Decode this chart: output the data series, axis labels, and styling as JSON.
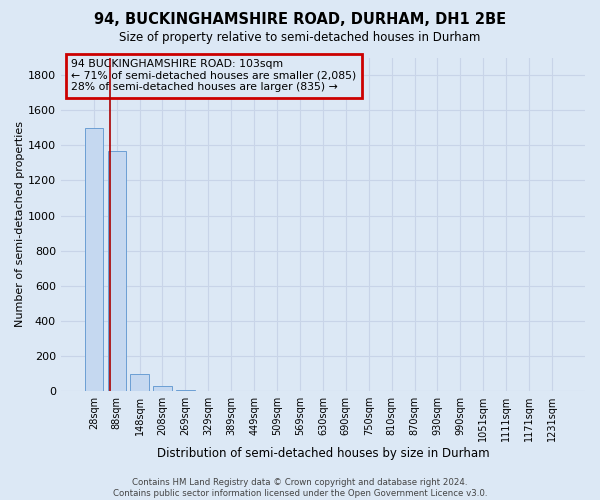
{
  "title": "94, BUCKINGHAMSHIRE ROAD, DURHAM, DH1 2BE",
  "subtitle": "Size of property relative to semi-detached houses in Durham",
  "xlabel": "Distribution of semi-detached houses by size in Durham",
  "ylabel": "Number of semi-detached properties",
  "bar_labels": [
    "28sqm",
    "88sqm",
    "148sqm",
    "208sqm",
    "269sqm",
    "329sqm",
    "389sqm",
    "449sqm",
    "509sqm",
    "569sqm",
    "630sqm",
    "690sqm",
    "750sqm",
    "810sqm",
    "870sqm",
    "930sqm",
    "990sqm",
    "1051sqm",
    "1111sqm",
    "1171sqm",
    "1231sqm"
  ],
  "bar_values": [
    1500,
    1370,
    100,
    30,
    5,
    2,
    1,
    0,
    0,
    0,
    0,
    0,
    0,
    0,
    0,
    0,
    0,
    0,
    0,
    0,
    0
  ],
  "bar_color": "#c5d8f0",
  "bar_edge_color": "#6b9fd4",
  "highlight_bar_index": 1,
  "highlight_line_color": "#aa0000",
  "annotation_text": "94 BUCKINGHAMSHIRE ROAD: 103sqm\n← 71% of semi-detached houses are smaller (2,085)\n28% of semi-detached houses are larger (835) →",
  "annotation_box_color": "#cc0000",
  "annotation_bg_color": "#dce8f5",
  "ylim": [
    0,
    1900
  ],
  "yticks": [
    0,
    200,
    400,
    600,
    800,
    1000,
    1200,
    1400,
    1600,
    1800
  ],
  "background_color": "#dce8f5",
  "grid_color": "#c8d4e8",
  "footer": "Contains HM Land Registry data © Crown copyright and database right 2024.\nContains public sector information licensed under the Open Government Licence v3.0."
}
